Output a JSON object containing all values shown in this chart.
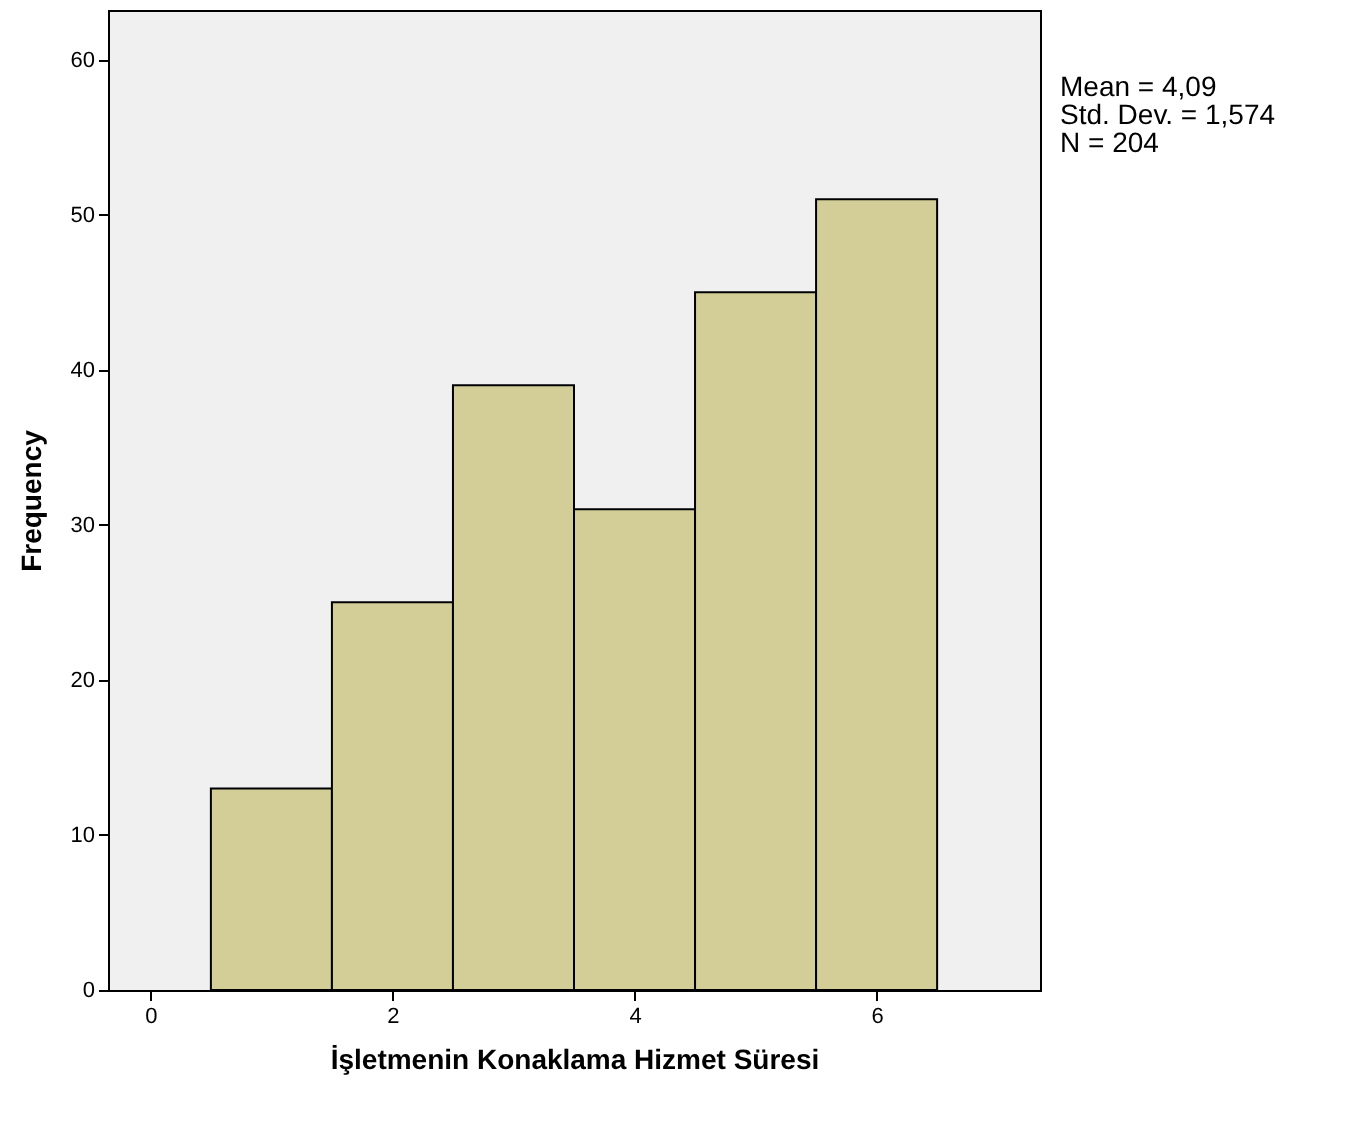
{
  "chart_data": {
    "type": "histogram",
    "xlabel": "İşletmenin Konaklama Hizmet Süresi",
    "ylabel": "Frequency",
    "bins": [
      0.5,
      1.5,
      2.5,
      3.5,
      4.5,
      5.5,
      6.5
    ],
    "values": [
      13,
      25,
      39,
      31,
      45,
      51
    ],
    "color": "#d3ce97",
    "xlim": [
      -0.35,
      7.35
    ],
    "xticks": [
      0,
      2,
      4,
      6
    ],
    "ylim": [
      0,
      63.2
    ],
    "yticks": [
      0,
      10,
      20,
      30,
      40,
      50,
      60
    ],
    "grid": false,
    "annotations": [
      "Mean = 4,09",
      "Std. Dev. = 1,574",
      "N = 204"
    ]
  }
}
